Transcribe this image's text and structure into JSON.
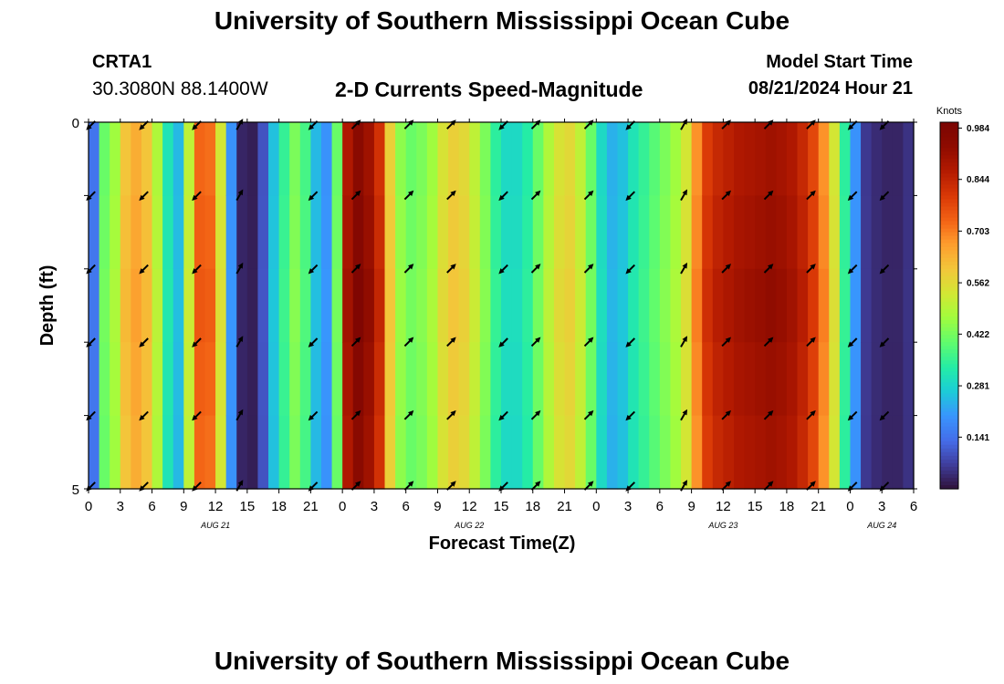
{
  "page": {
    "title": "University of Southern Mississippi Ocean Cube",
    "title_repeat": "University of Southern Mississippi Ocean Cube",
    "station": "CRTA1",
    "coords": "30.3080N  88.1400W",
    "chart_title": "2-D Currents Speed-Magnitude",
    "model_start_label": "Model Start Time",
    "model_start_value": "08/21/2024 Hour 21"
  },
  "chart_data": {
    "type": "heatmap",
    "title": "2-D Currents Speed-Magnitude",
    "xlabel": "Forecast Time(Z)",
    "ylabel": "Depth (ft)",
    "units": "Knots",
    "xlim": [
      0,
      78
    ],
    "ylim": [
      0,
      5
    ],
    "y_ticks": [
      "0",
      "5"
    ],
    "x_tick_labels": [
      "0",
      "3",
      "6",
      "9",
      "12",
      "15",
      "18",
      "21",
      "0",
      "3",
      "6",
      "9",
      "12",
      "15",
      "18",
      "21",
      "0",
      "3",
      "6",
      "9",
      "12",
      "15",
      "18",
      "21",
      "0",
      "3",
      "6"
    ],
    "date_labels": [
      {
        "text": "AUG 21",
        "at_hour": 12
      },
      {
        "text": "AUG 22",
        "at_hour": 36
      },
      {
        "text": "AUG 23",
        "at_hour": 60
      },
      {
        "text": "AUG 24",
        "at_hour": 75
      }
    ],
    "colorbar": {
      "min": 0,
      "max": 1.0,
      "tick_values": [
        0.984,
        0.844,
        0.703,
        0.562,
        0.422,
        0.281,
        0.141
      ],
      "tick_labels": [
        "0.984",
        "0.844",
        "0.703",
        "0.562",
        "0.422",
        "0.281",
        "0.141"
      ]
    },
    "speed_knots": [
      0.15,
      0.42,
      0.48,
      0.62,
      0.66,
      0.62,
      0.5,
      0.32,
      0.25,
      0.52,
      0.75,
      0.74,
      0.55,
      0.2,
      0.03,
      0.02,
      0.1,
      0.26,
      0.36,
      0.44,
      0.38,
      0.25,
      0.2,
      0.42,
      0.9,
      0.98,
      0.93,
      0.84,
      0.6,
      0.46,
      0.42,
      0.44,
      0.48,
      0.56,
      0.6,
      0.58,
      0.52,
      0.44,
      0.35,
      0.3,
      0.3,
      0.34,
      0.42,
      0.5,
      0.56,
      0.58,
      0.52,
      0.42,
      0.3,
      0.24,
      0.26,
      0.32,
      0.36,
      0.4,
      0.44,
      0.48,
      0.55,
      0.7,
      0.82,
      0.86,
      0.88,
      0.9,
      0.91,
      0.92,
      0.93,
      0.92,
      0.9,
      0.86,
      0.8,
      0.7,
      0.55,
      0.35,
      0.2,
      0.06,
      0.04,
      0.03,
      0.03,
      0.05
    ],
    "arrow_times": [
      0,
      5,
      10,
      14,
      21,
      25,
      30,
      34,
      39,
      42,
      47,
      51,
      56,
      60,
      64,
      68,
      72,
      75
    ],
    "arrow_depths": [
      0,
      1,
      2,
      3,
      4,
      5
    ],
    "arrow_angles_deg": [
      135,
      135,
      135,
      -60,
      135,
      -45,
      -45,
      -45,
      135,
      -45,
      -45,
      135,
      -60,
      -45,
      -45,
      -45,
      135,
      135
    ]
  }
}
